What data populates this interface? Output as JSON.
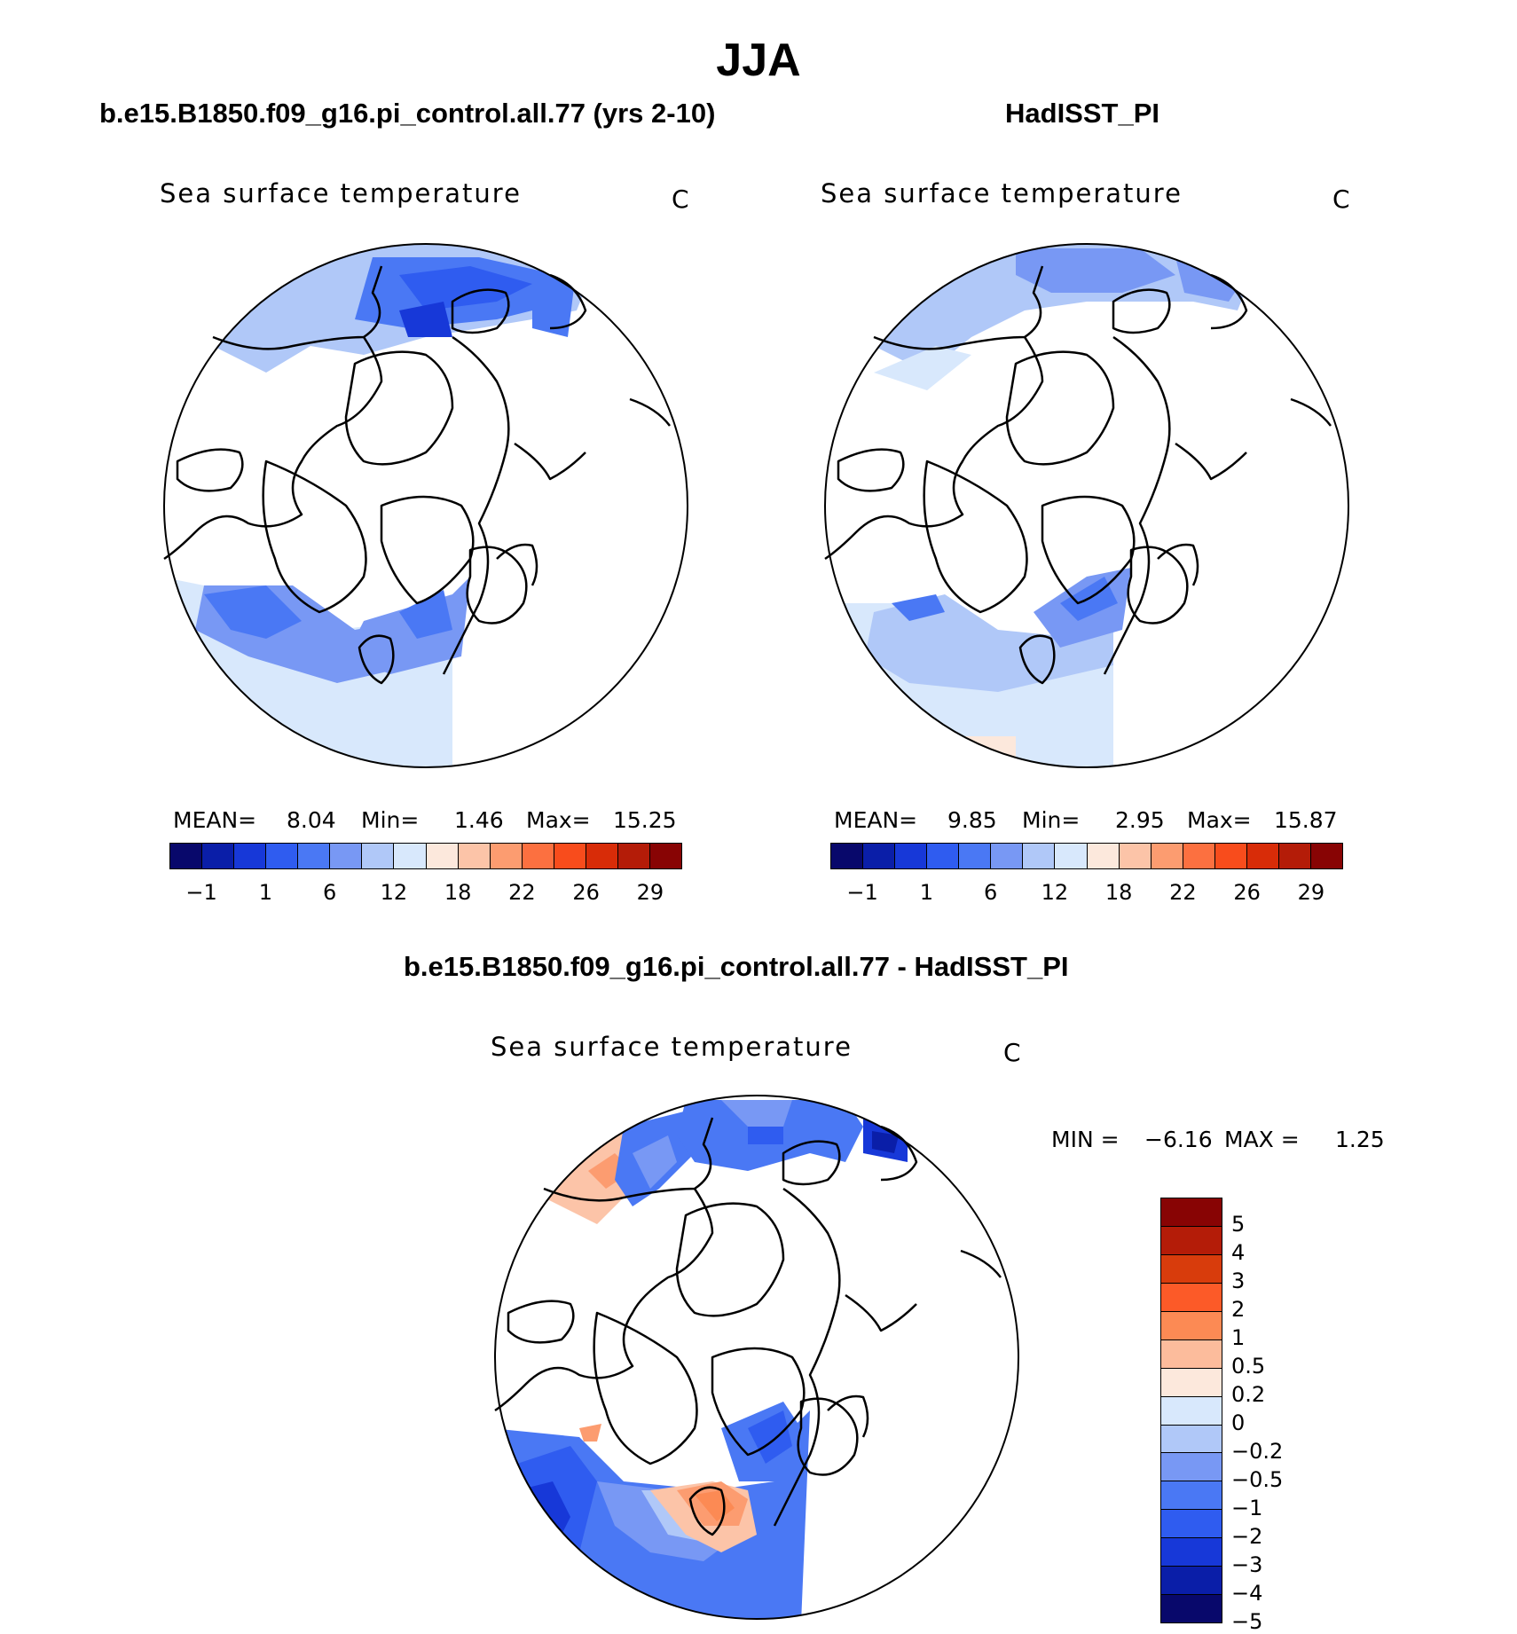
{
  "figure": {
    "title": "JJA",
    "variable_label": "Sea surface temperature",
    "units": "C"
  },
  "panels": [
    {
      "case_title": "b.e15.B1850.f09_g16.pi_control.all.77 (yrs 2-10)",
      "stats": {
        "mean_label": "MEAN=",
        "mean": "8.04",
        "min_label": "Min=",
        "min": "1.46",
        "max_label": "Max=",
        "max": "15.25"
      }
    },
    {
      "case_title": "HadISST_PI",
      "stats": {
        "mean_label": "MEAN=",
        "mean": "9.85",
        "min_label": "Min=",
        "min": "2.95",
        "max_label": "Max=",
        "max": "15.87"
      }
    }
  ],
  "difference_panel": {
    "case_title": "b.e15.B1850.f09_g16.pi_control.all.77 - HadISST_PI",
    "stats": {
      "min_label": "MIN =",
      "min": "−6.16",
      "max_label": "MAX =",
      "max": "1.25"
    }
  },
  "colorbar_main": {
    "colors": [
      "#08086b",
      "#0a1ea8",
      "#1738d8",
      "#2f5cf0",
      "#4a78f4",
      "#7898f4",
      "#b0c8f8",
      "#d8e8fc",
      "#fce8dc",
      "#fcc4a8",
      "#fc9c70",
      "#fc7040",
      "#f84c1c",
      "#d82c08",
      "#b41c08",
      "#880404"
    ],
    "labels": [
      "−1",
      "1",
      "6",
      "12",
      "18",
      "22",
      "26",
      "29"
    ]
  },
  "colorbar_diff": {
    "colors": [
      "#880404",
      "#b41c08",
      "#d83c0c",
      "#fc5a28",
      "#fc8a54",
      "#fcbc9c",
      "#fce8dc",
      "#d8e8fc",
      "#b0c8f8",
      "#7898f4",
      "#4a78f4",
      "#2f5cf0",
      "#1738d8",
      "#0a1ea8",
      "#08086b"
    ],
    "labels": [
      "5",
      "4",
      "3",
      "2",
      "1",
      "0.5",
      "0.2",
      "0",
      "−0.2",
      "−0.5",
      "−1",
      "−2",
      "−3",
      "−4",
      "−5"
    ]
  }
}
